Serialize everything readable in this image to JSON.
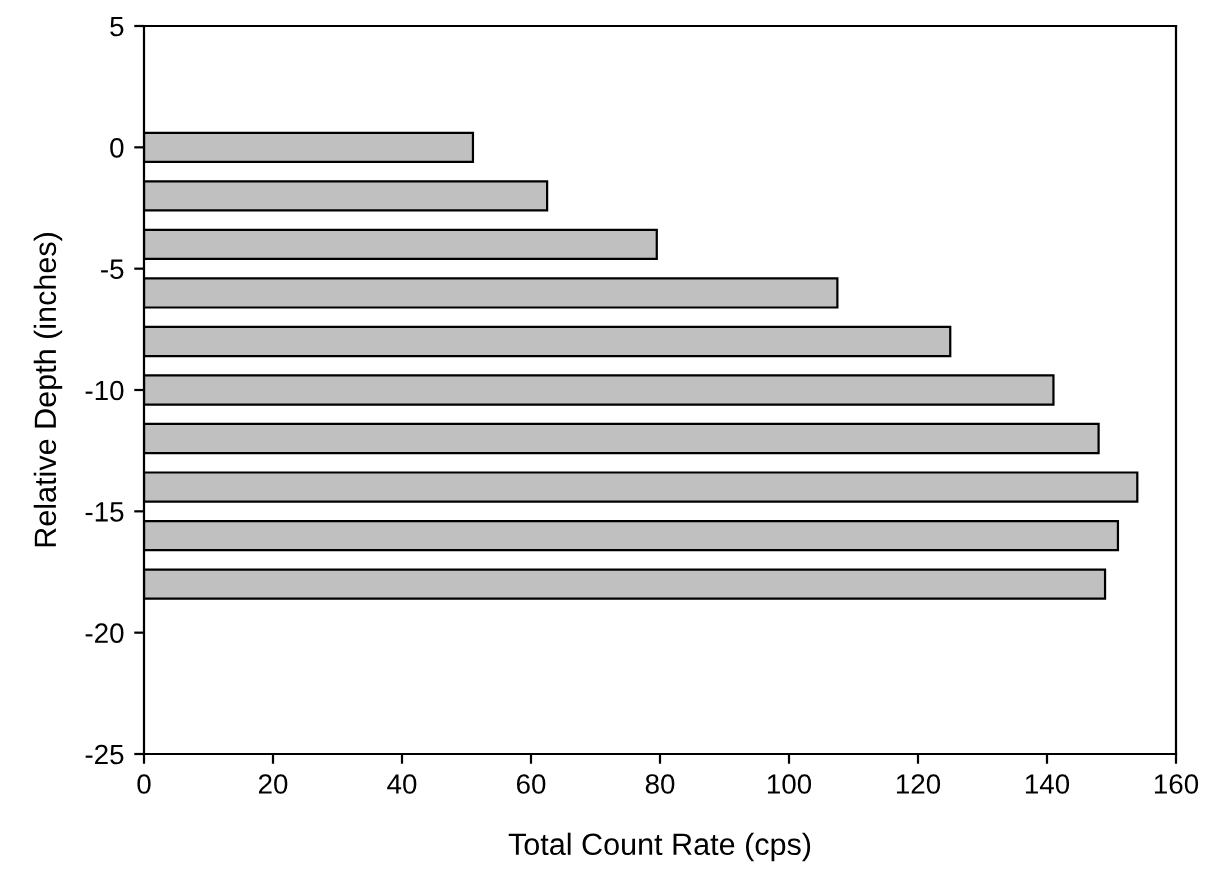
{
  "chart_data": {
    "type": "bar",
    "orientation": "horizontal",
    "xlabel": "Total Count Rate (cps)",
    "ylabel": "Relative Depth (inches)",
    "x": [
      0,
      -2,
      -4,
      -6,
      -8,
      -10,
      -12,
      -14,
      -16,
      -18
    ],
    "values": [
      51,
      62.5,
      79.5,
      107.5,
      125,
      141,
      148,
      154,
      151,
      149
    ],
    "color": "#c0c0c0",
    "xlim": [
      0,
      160
    ],
    "xticks": [
      0,
      20,
      40,
      60,
      80,
      100,
      120,
      140,
      160
    ],
    "ylim": [
      -25,
      5
    ],
    "yticks": [
      -25,
      -20,
      -15,
      -10,
      -5,
      0,
      5
    ],
    "grid": false,
    "legend": false
  }
}
